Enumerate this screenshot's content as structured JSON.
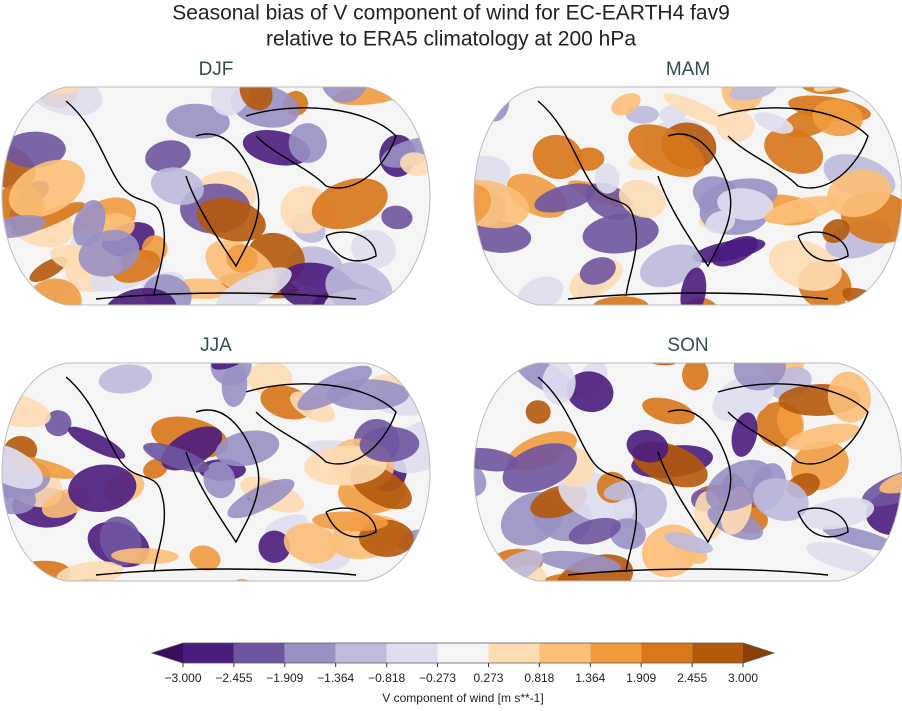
{
  "title_lines": [
    "Seasonal bias of V component of wind for EC-EARTH4 fav9",
    "relative to ERA5 climatology at 200 hPa"
  ],
  "panels": [
    {
      "title": "DJF"
    },
    {
      "title": "MAM"
    },
    {
      "title": "JJA"
    },
    {
      "title": "SON"
    }
  ],
  "colorbar": {
    "label": "V component of wind [m s**-1]",
    "ticks": [
      {
        "value": -3,
        "label": "−3.000"
      },
      {
        "value": -2.455,
        "label": "−2.455"
      },
      {
        "value": -1.909,
        "label": "−1.909"
      },
      {
        "value": -1.364,
        "label": "−1.364"
      },
      {
        "value": -0.818,
        "label": "−0.818"
      },
      {
        "value": -0.273,
        "label": "−0.273"
      },
      {
        "value": 0.273,
        "label": "0.273"
      },
      {
        "value": 0.818,
        "label": "0.818"
      },
      {
        "value": 1.364,
        "label": "1.364"
      },
      {
        "value": 1.909,
        "label": "1.909"
      },
      {
        "value": 2.455,
        "label": "2.455"
      },
      {
        "value": 3,
        "label": "3.000"
      }
    ],
    "colors": [
      "#4a1c7e",
      "#6f559f",
      "#9990c3",
      "#bdbadb",
      "#dfdeee",
      "#f5f5f5",
      "#fddcb4",
      "#fcbf78",
      "#f19b3f",
      "#d8761a",
      "#b4590b"
    ],
    "extend_colors": [
      "#3c0c5e",
      "#8c4006"
    ]
  }
}
